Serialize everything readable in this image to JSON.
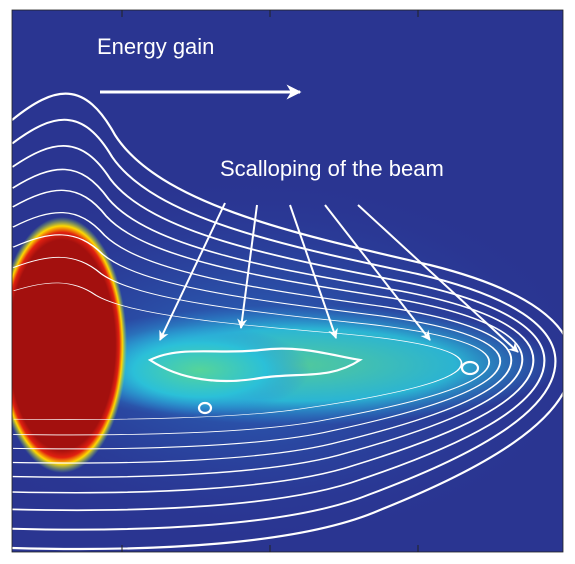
{
  "annotations": {
    "energy_gain": "Energy gain",
    "scalloping": "Scalloping of the beam"
  }
}
